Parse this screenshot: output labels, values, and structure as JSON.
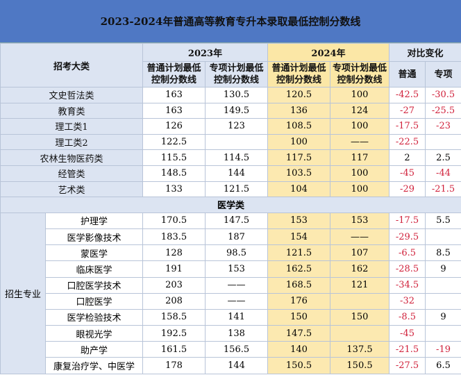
{
  "title": "2023-2024年普通高等教育专升本录取最低控制分数线",
  "header": {
    "category": "招考大类",
    "groups": [
      "2023年",
      "2024年",
      "对比变化"
    ],
    "columns": [
      "普通计划最低控制分数线",
      "专项计划最低控制分数线",
      "普通计划最低控制分数线",
      "专项计划最低控制分数线",
      "普通",
      "专项"
    ]
  },
  "rows": [
    [
      "文史哲法类",
      "163",
      "130.5",
      "120.5",
      "100",
      "-42.5",
      "-30.5"
    ],
    [
      "教育类",
      "163",
      "149.5",
      "136",
      "124",
      "-27",
      "-25.5"
    ],
    [
      "理工类1",
      "126",
      "123",
      "108.5",
      "100",
      "-17.5",
      "-23"
    ],
    [
      "理工类2",
      "122.5",
      null,
      "100",
      "——",
      "-22.5",
      null
    ],
    [
      "农林生物医药类",
      "115.5",
      "114.5",
      "117.5",
      "117",
      "2",
      "2.5"
    ],
    [
      "经管类",
      "148.5",
      "144",
      "103.5",
      "100",
      "-45",
      "-44"
    ],
    [
      "艺术类",
      "133",
      "121.5",
      "104",
      "100",
      "-29",
      "-21.5"
    ]
  ],
  "section": "医学类",
  "group": "招生专业",
  "medical_rows": [
    [
      "护理学",
      "170.5",
      "147.5",
      "153",
      "153",
      "-17.5",
      "5.5"
    ],
    [
      "医学影像技术",
      "183.5",
      "187",
      "154",
      "——",
      "-29.5",
      null
    ],
    [
      "蒙医学",
      "128",
      "98.5",
      "121.5",
      "107",
      "-6.5",
      "8.5"
    ],
    [
      "临床医学",
      "191",
      "153",
      "162.5",
      "162",
      "-28.5",
      "9"
    ],
    [
      "口腔医学技术",
      "203",
      "——",
      "168.5",
      "121",
      "-34.5",
      null
    ],
    [
      "口腔医学",
      "208",
      "——",
      "176",
      null,
      "-32",
      null
    ],
    [
      "医学检验技术",
      "158.5",
      "141",
      "150",
      "150",
      "-8.5",
      "9"
    ],
    [
      "眼视光学",
      "192.5",
      "138",
      "147.5",
      null,
      "-45",
      null
    ],
    [
      "助产学",
      "161.5",
      "156.5",
      "140",
      "137.5",
      "-21.5",
      "-19"
    ],
    [
      "康复治疗学、中医学",
      "178",
      "144",
      "150.5",
      "150.5",
      "-27.5",
      "6.5"
    ]
  ]
}
